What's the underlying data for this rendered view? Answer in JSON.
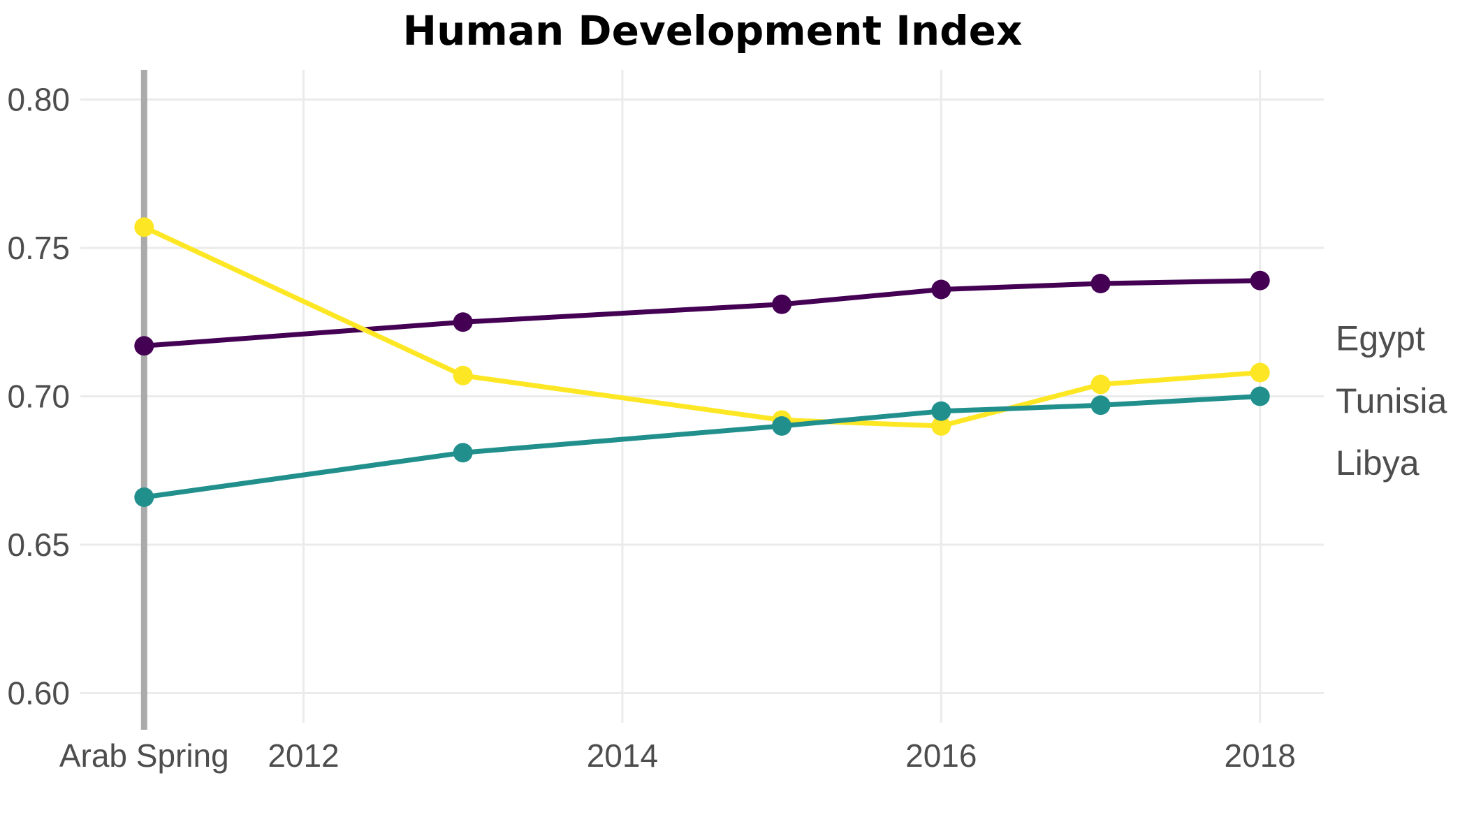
{
  "chart_data": {
    "type": "line",
    "title": "Human Development Index",
    "xlabel": "",
    "ylabel": "",
    "xlim": [
      2010.6,
      2018.4
    ],
    "ylim": [
      0.59,
      0.81
    ],
    "x_ticks": [
      {
        "value": 2011,
        "label": "Arab Spring"
      },
      {
        "value": 2012,
        "label": "2012"
      },
      {
        "value": 2014,
        "label": "2014"
      },
      {
        "value": 2016,
        "label": "2016"
      },
      {
        "value": 2018,
        "label": "2018"
      }
    ],
    "y_ticks": [
      {
        "value": 0.6,
        "label": "0.60"
      },
      {
        "value": 0.65,
        "label": "0.65"
      },
      {
        "value": 0.7,
        "label": "0.70"
      },
      {
        "value": 0.75,
        "label": "0.75"
      },
      {
        "value": 0.8,
        "label": "0.80"
      }
    ],
    "event_line": {
      "x": 2011,
      "color": "#aaaaaa"
    },
    "grid": true,
    "legend": "direct labels at right end of lines",
    "series": [
      {
        "name": "Egypt",
        "color": "#440154",
        "label_y": 0.7195,
        "points": [
          {
            "x": 2011,
            "y": 0.717
          },
          {
            "x": 2013,
            "y": 0.725
          },
          {
            "x": 2015,
            "y": 0.731
          },
          {
            "x": 2016,
            "y": 0.736
          },
          {
            "x": 2017,
            "y": 0.738
          },
          {
            "x": 2018,
            "y": 0.739
          }
        ]
      },
      {
        "name": "Tunisia",
        "color": "#fde725",
        "label_y": 0.6985,
        "points": [
          {
            "x": 2011,
            "y": 0.757
          },
          {
            "x": 2013,
            "y": 0.707
          },
          {
            "x": 2015,
            "y": 0.692
          },
          {
            "x": 2016,
            "y": 0.69
          },
          {
            "x": 2017,
            "y": 0.704
          },
          {
            "x": 2018,
            "y": 0.708
          }
        ]
      },
      {
        "name": "Libya",
        "color": "#21908d",
        "label_y": 0.6775,
        "points": [
          {
            "x": 2011,
            "y": 0.666
          },
          {
            "x": 2013,
            "y": 0.681
          },
          {
            "x": 2015,
            "y": 0.69
          },
          {
            "x": 2016,
            "y": 0.695
          },
          {
            "x": 2017,
            "y": 0.697
          },
          {
            "x": 2018,
            "y": 0.7
          }
        ]
      }
    ]
  }
}
